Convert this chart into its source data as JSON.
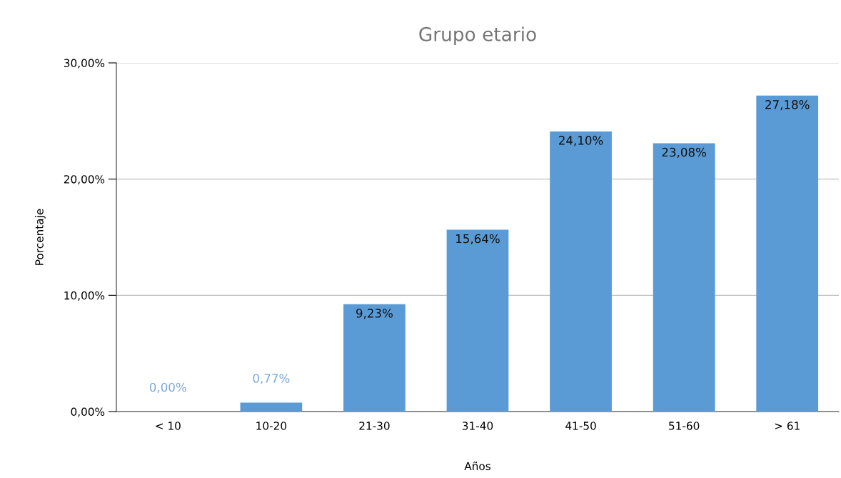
{
  "chart_data": {
    "type": "bar",
    "title": "Grupo etario",
    "xlabel": "Años",
    "ylabel": "Porcentaje",
    "categories": [
      "< 10",
      "10-20",
      "21-30",
      "31-40",
      "41-50",
      "51-60",
      "> 61"
    ],
    "values": [
      0,
      0.77,
      9.23,
      15.64,
      24.1,
      23.08,
      27.18
    ],
    "value_labels": [
      "0,00%",
      "0,77%",
      "9,23%",
      "15,64%",
      "24,10%",
      "23,08%",
      "27,18%"
    ],
    "color": "#5b9bd5",
    "ylim": [
      0,
      30
    ],
    "yticks": [
      {
        "value": 0,
        "label": "0,00%"
      },
      {
        "value": 10,
        "label": "10,00%"
      },
      {
        "value": 20,
        "label": "20,00%"
      },
      {
        "value": 30,
        "label": "30,00%"
      }
    ],
    "grid": "y"
  }
}
